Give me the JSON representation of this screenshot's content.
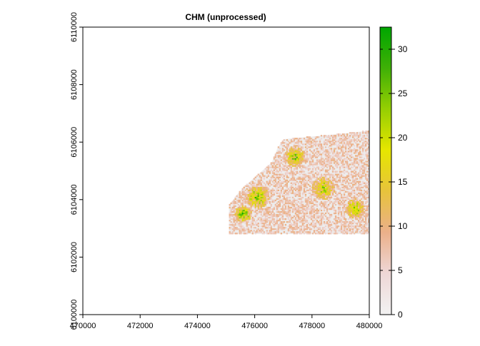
{
  "chart_data": {
    "type": "heatmap",
    "title": "CHM (unprocessed)",
    "xlabel": "",
    "ylabel": "",
    "xlim": [
      470000,
      480000
    ],
    "ylim": [
      6100000,
      6110000
    ],
    "x_ticks": [
      470000,
      472000,
      474000,
      476000,
      478000,
      480000
    ],
    "x_tick_labels": [
      "470000",
      "472000",
      "474000",
      "476000",
      "478000",
      "480000"
    ],
    "y_ticks": [
      6100000,
      6102000,
      6104000,
      6106000,
      6108000,
      6110000
    ],
    "y_tick_labels": [
      "6100000",
      "6102000",
      "6104000",
      "6106000",
      "6108000",
      "6110000"
    ],
    "legend": {
      "position": "right",
      "range": [
        0,
        32.5
      ],
      "ticks": [
        0,
        5,
        10,
        15,
        20,
        25,
        30
      ],
      "tick_labels": [
        "0",
        "5",
        "10",
        "15",
        "20",
        "25",
        "30"
      ],
      "palette": [
        "#f2f2f2",
        "#eed7d6",
        "#ebb08a",
        "#e7c33c",
        "#e6e600",
        "#96cf02",
        "#3fb006",
        "#00a600"
      ]
    },
    "grid": false,
    "raster": {
      "background": "#ededed",
      "data_extent": {
        "xmin": 475100,
        "xmax": 480000,
        "ymin": 6102800,
        "ymax": 6106400
      },
      "footprint": [
        [
          475100,
          6102800
        ],
        [
          480000,
          6102800
        ],
        [
          480000,
          6106400
        ],
        [
          479100,
          6106300
        ],
        [
          477000,
          6106100
        ],
        [
          476800,
          6105800
        ],
        [
          476600,
          6105300
        ],
        [
          475800,
          6104600
        ],
        [
          475400,
          6104200
        ],
        [
          475100,
          6103800
        ]
      ],
      "vegetation_patches": [
        {
          "x": 475600,
          "y": 6103500,
          "r": 300,
          "v": 24
        },
        {
          "x": 476100,
          "y": 6104100,
          "r": 400,
          "v": 20
        },
        {
          "x": 477400,
          "y": 6105500,
          "r": 350,
          "v": 18
        },
        {
          "x": 478400,
          "y": 6104400,
          "r": 400,
          "v": 15
        },
        {
          "x": 479500,
          "y": 6103700,
          "r": 350,
          "v": 17
        }
      ]
    }
  }
}
